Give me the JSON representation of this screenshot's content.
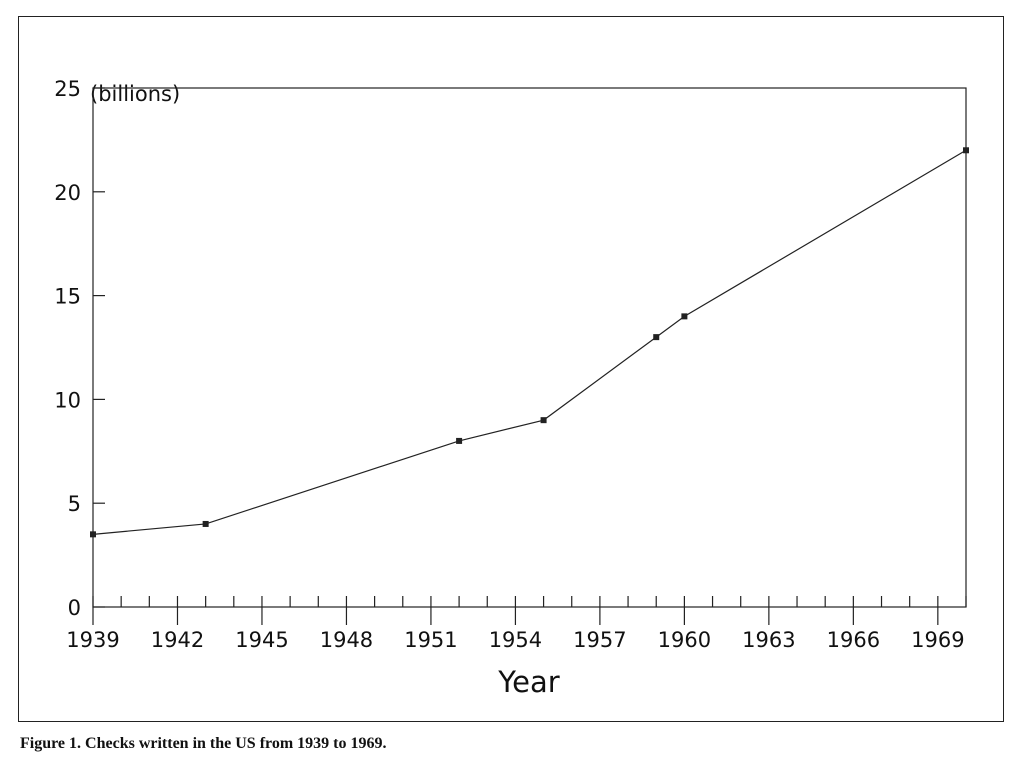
{
  "chart_data": {
    "type": "line",
    "title": "",
    "xlabel": "Year",
    "ylabel": "(billions)",
    "xlim": [
      1939,
      1970
    ],
    "ylim": [
      0,
      25
    ],
    "x_ticks": [
      1939,
      1942,
      1945,
      1948,
      1951,
      1954,
      1957,
      1960,
      1963,
      1966,
      1969
    ],
    "y_ticks": [
      0,
      5,
      10,
      15,
      20,
      25
    ],
    "grid": false,
    "legend": "none",
    "series": [
      {
        "x": [
          1939,
          1943,
          1952,
          1955,
          1959,
          1960,
          1970
        ],
        "y": [
          3.5,
          4,
          8,
          9,
          13,
          14,
          22
        ],
        "color": "#222222",
        "marker": "square"
      }
    ]
  },
  "caption": "Figure 1. Checks written in the US from 1939 to 1969."
}
